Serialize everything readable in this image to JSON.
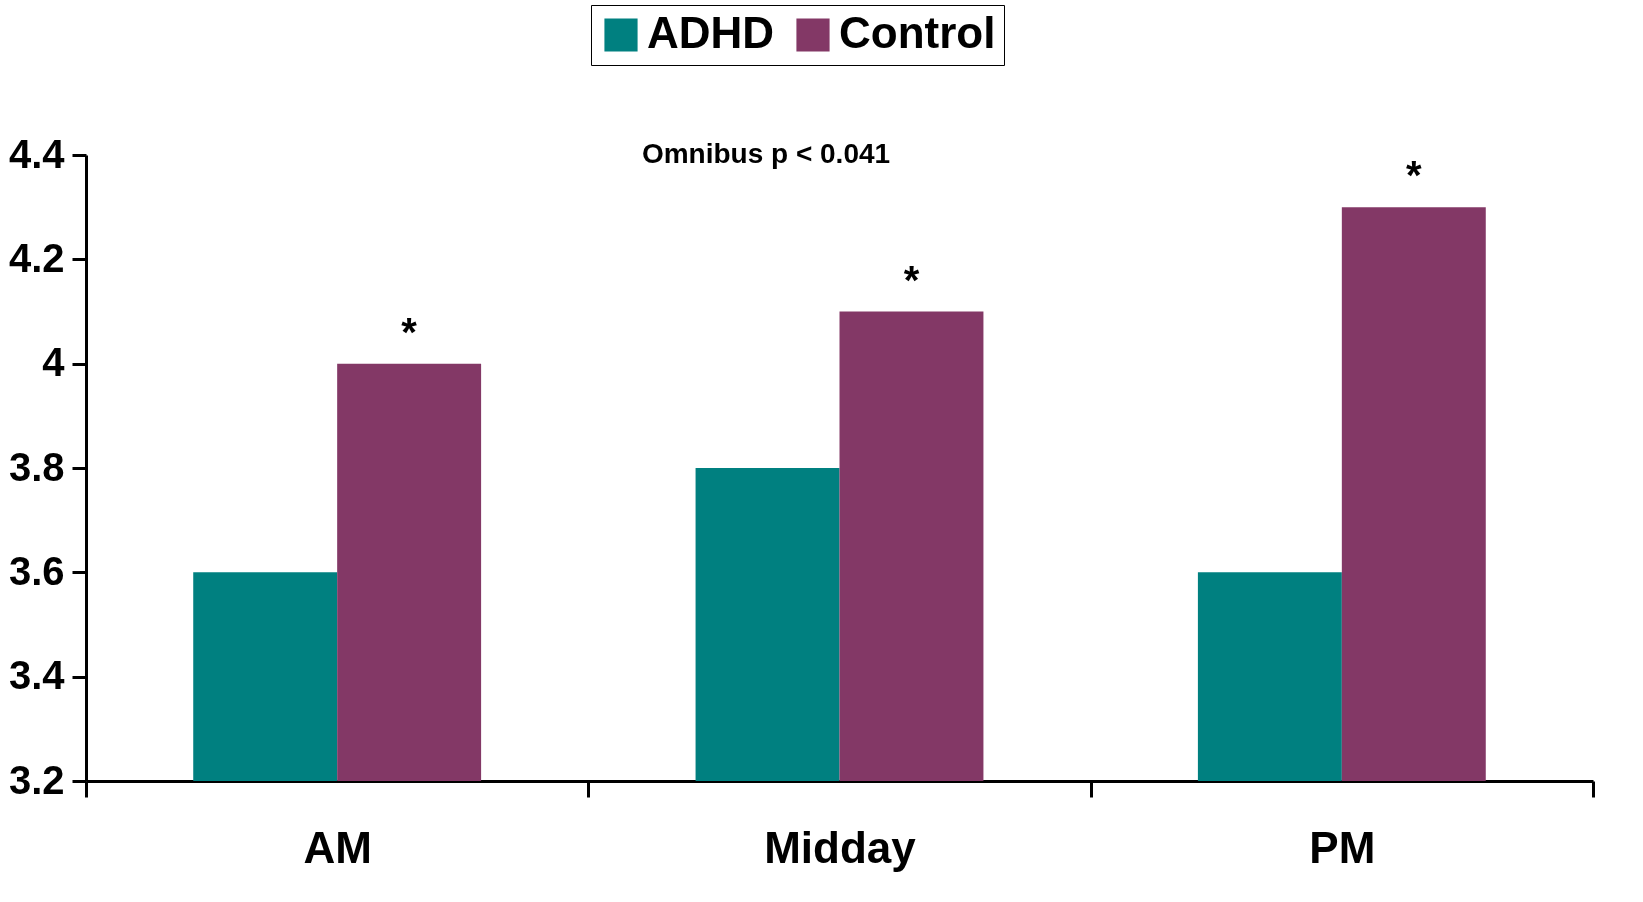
{
  "chart_data": {
    "type": "bar",
    "categories": [
      "AM",
      "Midday",
      "PM"
    ],
    "series": [
      {
        "name": "ADHD",
        "color": "#008080",
        "values": [
          3.6,
          3.8,
          3.6
        ]
      },
      {
        "name": "Control",
        "color": "#833866",
        "values": [
          4.0,
          4.1,
          4.3
        ]
      }
    ],
    "ylim": [
      3.2,
      4.4
    ],
    "yticks": [
      3.2,
      3.4,
      3.6,
      3.8,
      4,
      4.2,
      4.4
    ],
    "grid": false,
    "legend": "top",
    "annotations": [
      "Omnibus p < 0.041",
      {
        "text": "*",
        "x": "AM",
        "y": 4.0
      },
      {
        "text": "*",
        "x": "Midday",
        "y": 4.1
      },
      {
        "text": "*",
        "x": "PM",
        "y": 4.3
      }
    ]
  }
}
